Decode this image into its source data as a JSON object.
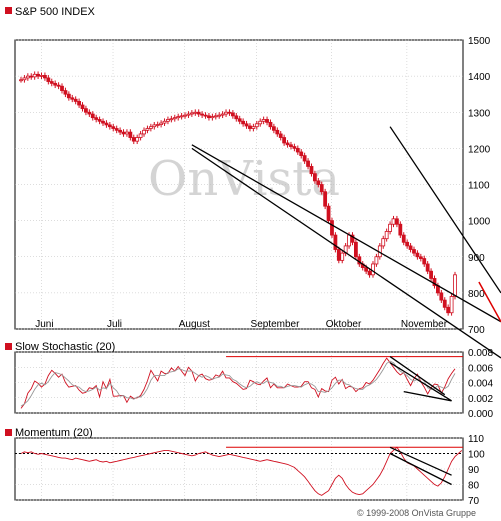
{
  "header": {
    "title": "S&P 500 INDEX"
  },
  "watermark": "OnVista",
  "copyright": "© 1999-2008 OnVista Gruppe",
  "colors": {
    "candle": "#d01020",
    "trend": "#000000",
    "trend_red": "#dd0000",
    "grid": "#bbbbbb",
    "stoch_slow": "#999999"
  },
  "chart_data": [
    {
      "type": "line",
      "title": "S&P 500 INDEX",
      "style": "candlestick",
      "x_ticks": [
        "Juni",
        "Juli",
        "August",
        "September",
        "Oktober",
        "November"
      ],
      "y_ticks": [
        700,
        800,
        900,
        1000,
        1100,
        1200,
        1300,
        1400,
        1500
      ],
      "ylim": [
        700,
        1500
      ],
      "y_axis_position": "right",
      "grid": true,
      "x": [
        0,
        1,
        2,
        3,
        4,
        5,
        6,
        7,
        8,
        9,
        10,
        11,
        12,
        13,
        14,
        15,
        16,
        17,
        18,
        19,
        20,
        21,
        22,
        23,
        24,
        25,
        26,
        27,
        28,
        29,
        30,
        31,
        32,
        33,
        34,
        35,
        36,
        37,
        38,
        39,
        40,
        41,
        42,
        43,
        44,
        45,
        46,
        47,
        48,
        49,
        50,
        51,
        52,
        53,
        54,
        55,
        56,
        57,
        58,
        59,
        60,
        61,
        62,
        63,
        64,
        65,
        66,
        67,
        68,
        69,
        70,
        71,
        72,
        73,
        74,
        75,
        76,
        77,
        78,
        79,
        80,
        81,
        82,
        83,
        84,
        85,
        86,
        87,
        88,
        89,
        90,
        91,
        92,
        93,
        94,
        95,
        96,
        97,
        98,
        99,
        100,
        101,
        102,
        103,
        104,
        105,
        106,
        107,
        108,
        109,
        110,
        111,
        112,
        113,
        114,
        115,
        116,
        117,
        118,
        119,
        120,
        121,
        122,
        123,
        124,
        125,
        126,
        127
      ],
      "series": [
        {
          "values": [
            1390,
            1395,
            1400,
            1398,
            1405,
            1400,
            1402,
            1395,
            1385,
            1380,
            1375,
            1372,
            1360,
            1350,
            1340,
            1336,
            1330,
            1320,
            1310,
            1300,
            1295,
            1285,
            1280,
            1275,
            1270,
            1265,
            1260,
            1255,
            1250,
            1245,
            1240,
            1245,
            1230,
            1220,
            1230,
            1240,
            1250,
            1255,
            1260,
            1265,
            1266,
            1270,
            1275,
            1280,
            1282,
            1285,
            1288,
            1290,
            1292,
            1295,
            1298,
            1300,
            1295,
            1292,
            1290,
            1285,
            1288,
            1290,
            1292,
            1295,
            1300,
            1298,
            1290,
            1282,
            1275,
            1268,
            1262,
            1255,
            1260,
            1268,
            1275,
            1280,
            1272,
            1260,
            1250,
            1240,
            1230,
            1215,
            1210,
            1205,
            1200,
            1190,
            1180,
            1165,
            1150,
            1130,
            1110,
            1100,
            1080,
            1040,
            1000,
            960,
            920,
            890,
            910,
            930,
            960,
            940,
            900,
            880,
            870,
            860,
            850,
            880,
            900,
            930,
            950,
            970,
            990,
            1005,
            990,
            960,
            940,
            930,
            920,
            910,
            900,
            895,
            880,
            860,
            840,
            820,
            800,
            780,
            760,
            745,
            790,
            850
          ]
        }
      ],
      "trendlines": [
        {
          "name": "channel-upper",
          "from": [
            108,
            1260
          ],
          "to": [
            187,
            800
          ]
        },
        {
          "name": "channel-mid",
          "from": [
            50,
            1210
          ],
          "to": [
            197,
            720
          ]
        },
        {
          "name": "channel-lower",
          "from": [
            50,
            1200
          ],
          "to": [
            197,
            620
          ]
        },
        {
          "name": "channel-red",
          "from": [
            134,
            830
          ],
          "to": [
            187,
            720
          ]
        }
      ]
    },
    {
      "type": "line",
      "title": "Slow Stochastic (20)",
      "y_ticks": [
        "0.000",
        "0.002",
        "0.004",
        "0.006",
        "0.008"
      ],
      "ylim": [
        0,
        0.008
      ],
      "y_axis_position": "right",
      "series": [
        {
          "values": [
            0.0006,
            0.0012,
            0.0026,
            0.0032,
            0.0042,
            0.0039,
            0.0034,
            0.0038,
            0.0049,
            0.0056,
            0.0052,
            0.0047,
            0.0051,
            0.004,
            0.0034,
            0.0035,
            0.0036,
            0.003,
            0.0026,
            0.0027,
            0.0033,
            0.0032,
            0.0036,
            0.0021,
            0.0041,
            0.0032,
            0.0044,
            0.0022,
            0.0022,
            0.0023,
            0.0023,
            0.0014,
            0.0022,
            0.0019,
            0.002,
            0.0023,
            0.0031,
            0.0042,
            0.0056,
            0.0049,
            0.0042,
            0.0055,
            0.0052,
            0.0052,
            0.0059,
            0.0055,
            0.0061,
            0.0055,
            0.0049,
            0.006,
            0.0055,
            0.0042,
            0.0049,
            0.0051,
            0.0045,
            0.0043,
            0.0044,
            0.005,
            0.0048,
            0.0055,
            0.0046,
            0.0046,
            0.0041,
            0.0039,
            0.0035,
            0.0031,
            0.0032,
            0.0043,
            0.0041,
            0.0038,
            0.0037,
            0.0042,
            0.0046,
            0.0033,
            0.0038,
            0.0033,
            0.0033,
            0.0033,
            0.0038,
            0.0036,
            0.0034,
            0.0034,
            0.0035,
            0.0041,
            0.0041,
            0.0033,
            0.0031,
            0.0021,
            0.0032,
            0.0029,
            0.0028,
            0.0043,
            0.0047,
            0.0038,
            0.0044,
            0.0032,
            0.0035,
            0.0034,
            0.0028,
            0.0032,
            0.0033,
            0.004,
            0.0038,
            0.0043,
            0.005,
            0.0057,
            0.0065,
            0.0072,
            0.0066,
            0.006,
            0.0054,
            0.005,
            0.0053,
            0.0044,
            0.0036,
            0.0045,
            0.0051,
            0.0041,
            0.0034,
            0.0025,
            0.0033,
            0.0038,
            0.0037,
            0.0026,
            0.0034,
            0.0045,
            0.0052,
            0.0058
          ]
        },
        {
          "values": [
            0.0009,
            0.0012,
            0.0016,
            0.0023,
            0.0031,
            0.0037,
            0.0039,
            0.0037,
            0.0041,
            0.0048,
            0.0053,
            0.0052,
            0.005,
            0.0046,
            0.0042,
            0.0037,
            0.0035,
            0.0034,
            0.003,
            0.0028,
            0.0029,
            0.0031,
            0.0034,
            0.003,
            0.0033,
            0.0032,
            0.0039,
            0.0033,
            0.0029,
            0.0022,
            0.0023,
            0.002,
            0.002,
            0.0018,
            0.0021,
            0.0021,
            0.0025,
            0.0032,
            0.0043,
            0.0049,
            0.0049,
            0.0049,
            0.0049,
            0.0053,
            0.0054,
            0.0055,
            0.0058,
            0.0057,
            0.0055,
            0.0055,
            0.0055,
            0.0052,
            0.0049,
            0.0047,
            0.0049,
            0.0047,
            0.0044,
            0.0046,
            0.0047,
            0.0051,
            0.005,
            0.0049,
            0.0044,
            0.0042,
            0.0038,
            0.0035,
            0.0033,
            0.0035,
            0.0039,
            0.0041,
            0.0039,
            0.0039,
            0.0042,
            0.004,
            0.0039,
            0.0035,
            0.0035,
            0.0033,
            0.0035,
            0.0036,
            0.0036,
            0.0035,
            0.0034,
            0.0037,
            0.0039,
            0.0038,
            0.0035,
            0.0028,
            0.0028,
            0.0027,
            0.0029,
            0.0033,
            0.0039,
            0.0043,
            0.0043,
            0.0038,
            0.0037,
            0.0034,
            0.0032,
            0.0031,
            0.0031,
            0.0035,
            0.0037,
            0.004,
            0.0044,
            0.005,
            0.0057,
            0.0065,
            0.0068,
            0.0066,
            0.006,
            0.0055,
            0.0052,
            0.0049,
            0.0044,
            0.0042,
            0.0044,
            0.0046,
            0.0042,
            0.0033,
            0.0031,
            0.0032,
            0.0036,
            0.0034,
            0.0032,
            0.0035,
            0.0044,
            0.0052
          ]
        }
      ],
      "reference_lines": [
        0.0074
      ],
      "trendlines": [
        {
          "name": "stoch-upper",
          "from": [
            108,
            0.0074
          ],
          "to": [
            124,
            0.0024
          ]
        },
        {
          "name": "stoch-lower",
          "from": [
            108,
            0.0066
          ],
          "to": [
            126,
            0.0016
          ]
        },
        {
          "name": "stoch-base",
          "from": [
            112,
            0.0028
          ],
          "to": [
            126,
            0.0016
          ]
        }
      ]
    },
    {
      "type": "line",
      "title": "Momentum (20)",
      "y_ticks": [
        70,
        80,
        90,
        100,
        110
      ],
      "ylim": [
        70,
        110
      ],
      "y_axis_position": "right",
      "series": [
        {
          "values": [
            100,
            101,
            100.5,
            101,
            100,
            99.5,
            100,
            99.5,
            99,
            98.5,
            98,
            97.5,
            97,
            97,
            96.5,
            96,
            97,
            96.5,
            96,
            95.5,
            95,
            95.5,
            96,
            95,
            94.5,
            95,
            94,
            94.5,
            95,
            95.5,
            96,
            96.5,
            97,
            97.5,
            98,
            98.5,
            99,
            99.5,
            100,
            100.5,
            101,
            101.5,
            102,
            102,
            101.5,
            101,
            100.5,
            100,
            99.5,
            99,
            98.5,
            99,
            100,
            100.5,
            101,
            100,
            99,
            98.5,
            98,
            98.5,
            99,
            99.5,
            99,
            98.5,
            98,
            97.5,
            97,
            96.5,
            96,
            95.5,
            95,
            95.5,
            96,
            95.5,
            95,
            94.5,
            94,
            93.5,
            93,
            92,
            91,
            89,
            87,
            85,
            82,
            79,
            76,
            74,
            73,
            74.5,
            76,
            80,
            84,
            86,
            84,
            80,
            77,
            75,
            74,
            73.5,
            74,
            76,
            78,
            80,
            83,
            86,
            90,
            95,
            100,
            102,
            104,
            101,
            97,
            94,
            93,
            92,
            90,
            88,
            86,
            84,
            82,
            80,
            79,
            81,
            85,
            90,
            95,
            98,
            100,
            102
          ]
        }
      ],
      "reference_lines": [
        100,
        104
      ],
      "trendlines": [
        {
          "name": "mom-upper",
          "from": [
            108,
            104
          ],
          "to": [
            126,
            86
          ]
        },
        {
          "name": "mom-lower",
          "from": [
            108,
            100
          ],
          "to": [
            126,
            80
          ]
        }
      ]
    }
  ]
}
